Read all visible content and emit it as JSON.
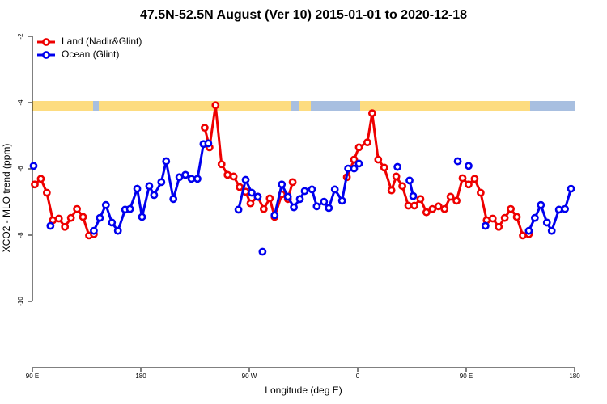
{
  "chart_data": {
    "type": "line",
    "title": "47.5N-52.5N August (Ver 10)   2015-01-01 to 2020-12-18",
    "x_label": "Longitude (deg E)",
    "y_label": "XCO2 - MLO trend (ppm)",
    "xlim": [
      90,
      540
    ],
    "ylim": [
      -12,
      -1.6
    ],
    "xticks": [
      {
        "value": 90,
        "label": "90 E"
      },
      180,
      {
        "value": 270,
        "label": "90 W"
      },
      {
        "value": 360,
        "label": "0"
      },
      {
        "value": 450,
        "label": "90 E"
      },
      {
        "value": 540,
        "label": "180"
      }
    ],
    "yticks": [
      -2,
      -4,
      -6,
      -8,
      -10
    ],
    "legend": "top-left",
    "series": [
      {
        "name": "Land (Nadir&Glint)",
        "color": "#ee0000",
        "x": [
          92,
          97,
          102,
          107,
          112,
          117,
          122,
          127,
          132,
          137,
          141,
          null,
          233,
          237,
          242,
          247,
          252,
          257,
          262,
          267,
          271,
          277,
          282,
          287,
          291,
          297,
          302,
          306,
          null,
          351,
          357,
          361,
          368,
          372,
          377,
          382,
          388,
          392,
          397,
          402,
          407,
          412,
          417,
          422,
          427,
          432,
          437,
          442,
          447,
          452,
          457,
          462,
          467,
          472,
          477,
          482,
          487,
          492,
          497,
          502
        ],
        "values": [
          -6.47,
          -6.3,
          -6.72,
          -7.55,
          -7.5,
          -7.75,
          -7.48,
          -7.21,
          -7.45,
          -8.01,
          -7.97,
          null,
          -4.76,
          -5.35,
          -4.08,
          -5.86,
          -6.18,
          -6.23,
          -6.55,
          -6.69,
          -7.04,
          -6.84,
          -7.21,
          -6.89,
          -7.45,
          -6.77,
          -6.91,
          -6.4,
          null,
          -6.25,
          -5.72,
          -5.35,
          -5.2,
          -4.32,
          -5.72,
          -5.96,
          -6.65,
          -6.23,
          -6.52,
          -7.11,
          -7.11,
          -6.91,
          -7.31,
          -7.21,
          -7.13,
          -7.21,
          -6.84,
          -6.96,
          -6.28,
          -6.47,
          -6.3,
          -6.72,
          -7.55,
          -7.5,
          -7.75,
          -7.48,
          -7.21,
          -7.45,
          -8.01,
          -7.97
        ]
      },
      {
        "name": "Ocean (Glint)",
        "color": "#0000ee",
        "x": [
          91,
          null,
          105,
          null,
          141,
          146,
          151,
          156,
          161,
          167,
          171,
          177,
          181,
          187,
          191,
          197,
          201,
          207,
          212,
          217,
          222,
          227,
          232,
          236,
          null,
          261,
          267,
          272,
          277,
          null,
          281,
          null,
          291,
          297,
          302,
          307,
          312,
          316,
          322,
          326,
          332,
          336,
          341,
          347,
          352,
          357,
          361,
          null,
          393,
          null,
          403,
          406,
          null,
          443,
          null,
          452,
          null,
          466,
          null,
          502,
          507,
          512,
          517,
          521,
          527,
          532,
          537
        ],
        "values": [
          -5.91,
          null,
          -7.72,
          null,
          -7.87,
          -7.48,
          -7.09,
          -7.62,
          -7.87,
          -7.23,
          -7.21,
          -6.6,
          -7.45,
          -6.52,
          -6.79,
          -6.4,
          -5.77,
          -6.91,
          -6.25,
          -6.18,
          -6.3,
          -6.3,
          -5.25,
          -5.23,
          null,
          -7.23,
          -6.33,
          -6.72,
          -6.84,
          null,
          -8.5,
          null,
          -7.4,
          -6.47,
          -6.84,
          -7.16,
          -6.91,
          -6.67,
          -6.62,
          -7.13,
          -6.99,
          -7.18,
          -6.62,
          -6.96,
          -5.99,
          -5.99,
          -5.84,
          null,
          -5.94,
          null,
          -6.35,
          -6.82,
          null,
          -5.77,
          null,
          -5.91,
          null,
          -7.72,
          null,
          -7.87,
          -7.48,
          -7.09,
          -7.62,
          -7.87,
          -7.23,
          -7.21,
          -6.6
        ]
      }
    ]
  }
}
